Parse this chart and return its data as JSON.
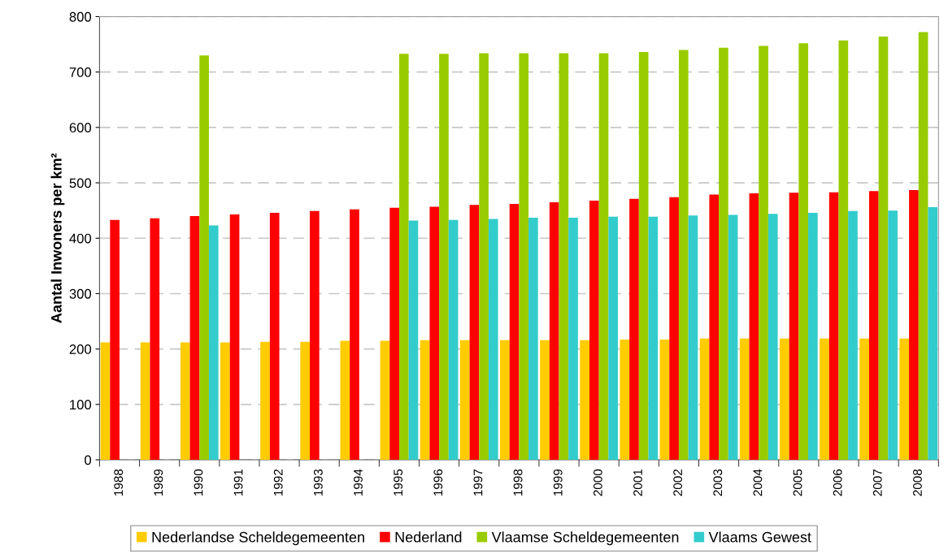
{
  "chart_data": {
    "type": "bar",
    "ylabel": "Aantal Inwoners per km²",
    "categories": [
      "1988",
      "1989",
      "1990",
      "1991",
      "1992",
      "1993",
      "1994",
      "1995",
      "1996",
      "1997",
      "1998",
      "1999",
      "2000",
      "2001",
      "2002",
      "2003",
      "2004",
      "2005",
      "2006",
      "2007",
      "2008"
    ],
    "series": [
      {
        "name": "Nederlandse Scheldegemeenten",
        "color": "#ffcc00",
        "values": [
          212,
          212,
          212,
          212,
          213,
          213,
          215,
          215,
          216,
          216,
          216,
          216,
          216,
          217,
          217,
          219,
          219,
          219,
          219,
          219,
          219
        ]
      },
      {
        "name": "Nederland",
        "color": "#ff0000",
        "values": [
          433,
          436,
          440,
          443,
          446,
          449,
          452,
          455,
          457,
          460,
          462,
          465,
          468,
          471,
          474,
          479,
          481,
          482,
          483,
          485,
          487
        ]
      },
      {
        "name": "Vlaamse Scheldegemeenten",
        "color": "#99cc00",
        "values": [
          null,
          null,
          730,
          null,
          null,
          null,
          null,
          733,
          733,
          734,
          734,
          734,
          734,
          736,
          740,
          744,
          747,
          752,
          757,
          764,
          772
        ]
      },
      {
        "name": "Vlaams Gewest",
        "color": "#33cccc",
        "values": [
          null,
          null,
          423,
          null,
          null,
          null,
          null,
          432,
          433,
          435,
          437,
          437,
          439,
          439,
          441,
          442,
          444,
          446,
          449,
          450,
          456
        ]
      }
    ],
    "ylim": [
      0,
      800
    ],
    "yticks": [
      0,
      100,
      200,
      300,
      400,
      500,
      600,
      700,
      800
    ],
    "grid": "y",
    "legend": "bottom"
  }
}
